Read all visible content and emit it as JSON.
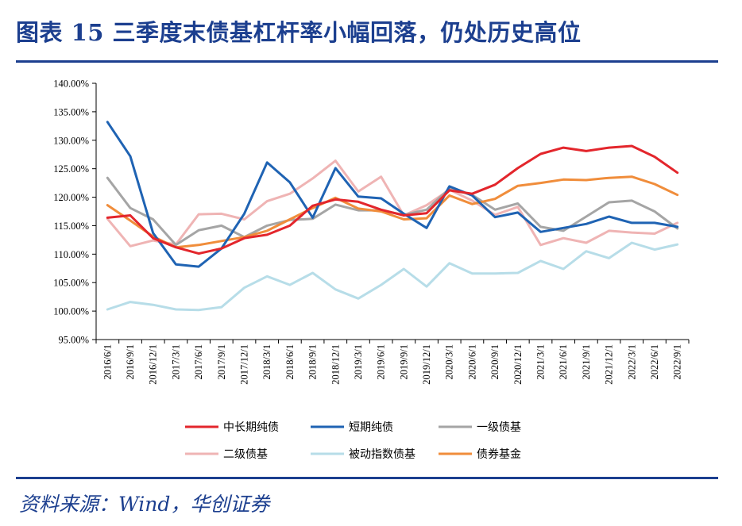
{
  "header": {
    "title": "图表 15  三季度末债基杠杆率小幅回落，仍处历史高位"
  },
  "footer": {
    "source": "资料来源：Wind，华创证券"
  },
  "chart_data": {
    "type": "line",
    "title": "三季度末债基杠杆率小幅回落，仍处历史高位",
    "xlabel": "",
    "ylabel": "",
    "ylim": [
      95,
      140
    ],
    "y_tick_labels": [
      "95.00%",
      "100.00%",
      "105.00%",
      "110.00%",
      "115.00%",
      "120.00%",
      "125.00%",
      "130.00%",
      "135.00%",
      "140.00%"
    ],
    "legend_position": "bottom",
    "grid": false,
    "x": [
      "2016/6/1",
      "2016/9/1",
      "2016/12/1",
      "2017/3/1",
      "2017/6/1",
      "2017/9/1",
      "2017/12/1",
      "2018/3/1",
      "2018/6/1",
      "2018/9/1",
      "2018/12/1",
      "2019/3/1",
      "2019/6/1",
      "2019/9/1",
      "2019/12/1",
      "2020/3/1",
      "2020/6/1",
      "2020/9/1",
      "2020/12/1",
      "2021/3/1",
      "2021/6/1",
      "2021/9/1",
      "2021/12/1",
      "2022/3/1",
      "2022/6/1",
      "2022/9/1"
    ],
    "series": [
      {
        "name": "中长期纯债",
        "color": "#e3262c",
        "values": [
          116.4,
          116.8,
          112.8,
          111.2,
          110.1,
          111.0,
          112.8,
          113.4,
          115.0,
          118.5,
          119.6,
          119.2,
          117.8,
          116.8,
          117.2,
          121.2,
          120.6,
          122.2,
          125.1,
          127.6,
          128.7,
          128.1,
          128.7,
          129.0,
          127.1,
          124.3
        ]
      },
      {
        "name": "短期纯债",
        "color": "#1f63b3",
        "values": [
          133.2,
          127.2,
          113.7,
          108.2,
          107.8,
          111.0,
          117.1,
          126.1,
          122.6,
          116.4,
          125.1,
          120.1,
          119.8,
          117.1,
          114.6,
          121.9,
          120.3,
          116.5,
          117.3,
          113.9,
          114.6,
          115.3,
          116.6,
          115.5,
          115.5,
          114.8
        ]
      },
      {
        "name": "一级债基",
        "color": "#a5a5a5",
        "values": [
          123.4,
          118.1,
          116.1,
          111.6,
          114.2,
          115.0,
          113.0,
          115.0,
          116.0,
          116.2,
          118.7,
          117.7,
          117.7,
          116.9,
          117.8,
          121.5,
          120.4,
          117.8,
          118.9,
          114.8,
          114.1,
          116.6,
          119.1,
          119.4,
          117.5,
          114.5
        ]
      },
      {
        "name": "二级债基",
        "color": "#efb4b4",
        "values": [
          116.2,
          111.4,
          112.4,
          111.7,
          117.0,
          117.1,
          116.1,
          119.3,
          120.6,
          123.3,
          126.4,
          121.0,
          123.6,
          116.8,
          118.6,
          121.3,
          119.4,
          116.9,
          118.3,
          111.6,
          112.8,
          112.0,
          114.1,
          113.8,
          113.6,
          115.5
        ]
      },
      {
        "name": "被动指数债基",
        "color": "#b7dde8",
        "values": [
          100.3,
          101.6,
          101.1,
          100.3,
          100.2,
          100.7,
          104.1,
          106.1,
          104.6,
          106.7,
          103.8,
          102.2,
          104.6,
          107.4,
          104.3,
          108.4,
          106.6,
          106.6,
          106.7,
          108.8,
          107.4,
          110.5,
          109.3,
          112.0,
          110.8,
          111.7
        ]
      },
      {
        "name": "债券基金",
        "color": "#f08d3b",
        "values": [
          118.6,
          115.9,
          113.1,
          111.2,
          111.6,
          112.3,
          113.0,
          114.1,
          116.1,
          118.1,
          119.9,
          118.0,
          117.5,
          116.1,
          116.3,
          120.3,
          118.8,
          119.7,
          122.0,
          122.5,
          123.1,
          123.0,
          123.4,
          123.6,
          122.3,
          120.4
        ]
      }
    ]
  }
}
